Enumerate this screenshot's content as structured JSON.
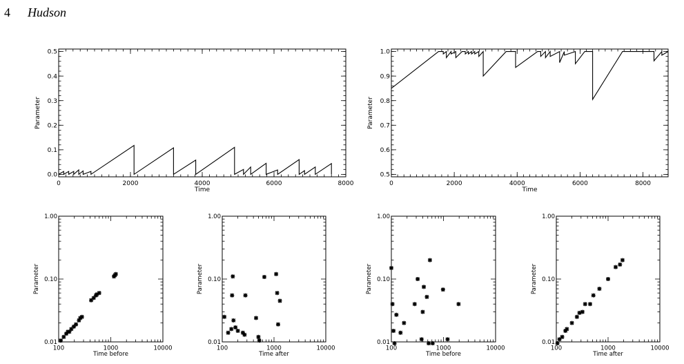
{
  "header": {
    "page_number": "4",
    "author": "Hudson"
  },
  "chart_data": [
    {
      "type": "line",
      "xlabel": "Time",
      "ylabel": "Parameter",
      "xlim": [
        0,
        8000
      ],
      "ylim": [
        -0.01,
        0.51
      ],
      "x_ticks": [
        0,
        2000,
        4000,
        6000,
        8000
      ],
      "x_tick_labels": [
        "0",
        "2000",
        "4000",
        "6000",
        "8000"
      ],
      "y_ticks": [
        0,
        0.1,
        0.2,
        0.3,
        0.4,
        0.5
      ],
      "y_tick_labels": [
        "0.0",
        "0.1",
        "0.2",
        "0.3",
        "0.4",
        "0.5"
      ],
      "x_minor_step": 200,
      "y_minor_step": 0.02,
      "series": [
        {
          "x": [
            0,
            140,
            140,
            280,
            280,
            420,
            420,
            560,
            560,
            680,
            680,
            900,
            900,
            2100,
            2100,
            3200,
            3200,
            3820,
            3820,
            4900,
            4900,
            5150,
            5150,
            5350,
            5350,
            5780,
            5780,
            6100,
            6100,
            6700,
            6700,
            6850,
            6850,
            7150,
            7150,
            7600,
            7600
          ],
          "y": [
            0,
            0.012,
            0,
            0.012,
            0,
            0.012,
            0,
            0.018,
            0,
            0.014,
            0,
            0.012,
            0,
            0.118,
            0,
            0.108,
            0,
            0.058,
            0,
            0.11,
            0,
            0.02,
            0,
            0.03,
            0,
            0.045,
            0,
            0.018,
            0,
            0.06,
            0,
            0.015,
            0,
            0.03,
            0,
            0.044,
            0
          ]
        }
      ]
    },
    {
      "type": "line",
      "xlabel": "Time",
      "ylabel": "Parameter",
      "xlim": [
        0,
        8800
      ],
      "ylim": [
        0.49,
        1.01
      ],
      "x_ticks": [
        0,
        2000,
        4000,
        6000,
        8000
      ],
      "x_tick_labels": [
        "0",
        "2000",
        "4000",
        "6000",
        "8000"
      ],
      "y_ticks": [
        0.5,
        0.6,
        0.7,
        0.8,
        0.9,
        1.0
      ],
      "y_tick_labels": [
        "0.5",
        "0.6",
        "0.7",
        "0.8",
        "0.9",
        "1.0"
      ],
      "x_minor_step": 200,
      "y_minor_step": 0.02,
      "series": [
        {
          "x": [
            0,
            1500,
            1650,
            1650,
            1750,
            1750,
            1900,
            1900,
            2050,
            2050,
            2250,
            2350,
            2350,
            2450,
            2450,
            2550,
            2550,
            2650,
            2650,
            2780,
            2780,
            2920,
            2920,
            3650,
            3950,
            3950,
            4650,
            4750,
            4750,
            4900,
            4900,
            5050,
            5050,
            5350,
            5350,
            5500,
            5500,
            5850,
            5850,
            6150,
            6400,
            6400,
            7350,
            8350,
            8350,
            8600,
            8600,
            8800
          ],
          "y": [
            0.85,
            1.0,
            1.0,
            0.99,
            1.0,
            0.975,
            1.0,
            0.99,
            1.0,
            0.975,
            1.0,
            1.0,
            0.99,
            1.0,
            0.99,
            1.0,
            0.99,
            1.0,
            0.99,
            1.0,
            0.98,
            1.0,
            0.9,
            1.0,
            1.0,
            0.935,
            1.0,
            1.0,
            0.98,
            1.0,
            0.975,
            1.0,
            0.98,
            1.0,
            0.955,
            1.0,
            0.985,
            1.0,
            0.95,
            1.0,
            1.0,
            0.805,
            1.0,
            1.0,
            0.962,
            1.0,
            0.985,
            1.0
          ]
        }
      ]
    },
    {
      "type": "scatter",
      "xlabel": "Time before",
      "ylabel": "Parameter",
      "x_scale": "log",
      "y_scale": "log",
      "xlim": [
        100,
        10000
      ],
      "ylim": [
        0.01,
        1.0
      ],
      "x_ticks": [
        100,
        1000,
        10000
      ],
      "x_tick_labels": [
        "100",
        "1000",
        "10000"
      ],
      "y_ticks": [
        0.01,
        0.1,
        1.0
      ],
      "y_tick_labels": [
        "0.01",
        "0.10",
        "1.00"
      ],
      "series": [
        {
          "x": [
            110,
            125,
            140,
            150,
            160,
            175,
            195,
            215,
            245,
            260,
            280,
            420,
            470,
            520,
            540,
            600,
            1150,
            1200,
            1250
          ],
          "y": [
            0.0105,
            0.012,
            0.0135,
            0.0145,
            0.0145,
            0.016,
            0.0175,
            0.019,
            0.022,
            0.024,
            0.025,
            0.046,
            0.05,
            0.055,
            0.057,
            0.06,
            0.11,
            0.115,
            0.12
          ]
        }
      ]
    },
    {
      "type": "scatter",
      "xlabel": "Time after",
      "ylabel": "Parameter",
      "x_scale": "log",
      "y_scale": "log",
      "xlim": [
        100,
        10000
      ],
      "ylim": [
        0.01,
        1.0
      ],
      "x_ticks": [
        100,
        1000,
        10000
      ],
      "x_tick_labels": [
        "100",
        "1000",
        "10000"
      ],
      "y_ticks": [
        0.01,
        0.1,
        1.0
      ],
      "y_tick_labels": [
        "0.01",
        "0.10",
        "1.00"
      ],
      "series": [
        {
          "x": [
            110,
            130,
            150,
            155,
            160,
            165,
            180,
            200,
            250,
            270,
            280,
            450,
            500,
            520,
            650,
            1100,
            1150,
            1200,
            1300
          ],
          "y": [
            0.025,
            0.014,
            0.016,
            0.055,
            0.11,
            0.022,
            0.017,
            0.015,
            0.014,
            0.013,
            0.055,
            0.024,
            0.012,
            0.0105,
            0.108,
            0.12,
            0.06,
            0.019,
            0.045
          ]
        }
      ]
    },
    {
      "type": "scatter",
      "xlabel": "Time before",
      "ylabel": "Parameter",
      "x_scale": "log",
      "y_scale": "log",
      "xlim": [
        100,
        10000
      ],
      "ylim": [
        0.01,
        1.0
      ],
      "x_ticks": [
        100,
        1000,
        10000
      ],
      "x_tick_labels": [
        "100",
        "1000",
        "10000"
      ],
      "y_ticks": [
        0.01,
        0.1,
        1.0
      ],
      "y_tick_labels": [
        "0.01",
        "0.10",
        "1.00"
      ],
      "series": [
        {
          "x": [
            100,
            105,
            110,
            115,
            125,
            150,
            175,
            280,
            320,
            380,
            400,
            420,
            480,
            520,
            550,
            620,
            980,
            1200,
            1950
          ],
          "y": [
            0.15,
            0.04,
            0.015,
            0.0095,
            0.027,
            0.014,
            0.02,
            0.04,
            0.1,
            0.011,
            0.03,
            0.075,
            0.052,
            0.0095,
            0.2,
            0.0095,
            0.068,
            0.011,
            0.04
          ]
        }
      ]
    },
    {
      "type": "scatter",
      "xlabel": "Time after",
      "ylabel": "Parameter",
      "x_scale": "log",
      "y_scale": "log",
      "xlim": [
        100,
        10000
      ],
      "ylim": [
        0.01,
        1.0
      ],
      "x_ticks": [
        100,
        1000,
        10000
      ],
      "x_tick_labels": [
        "100",
        "1000",
        "10000"
      ],
      "y_ticks": [
        0.01,
        0.1,
        1.0
      ],
      "y_tick_labels": [
        "0.01",
        "0.10",
        "1.00"
      ],
      "series": [
        {
          "x": [
            105,
            115,
            130,
            150,
            160,
            200,
            250,
            280,
            320,
            360,
            450,
            520,
            680,
            1000,
            1400,
            1700,
            1900
          ],
          "y": [
            0.0095,
            0.011,
            0.012,
            0.015,
            0.016,
            0.02,
            0.025,
            0.029,
            0.03,
            0.04,
            0.04,
            0.055,
            0.07,
            0.1,
            0.155,
            0.17,
            0.2
          ]
        }
      ]
    }
  ]
}
